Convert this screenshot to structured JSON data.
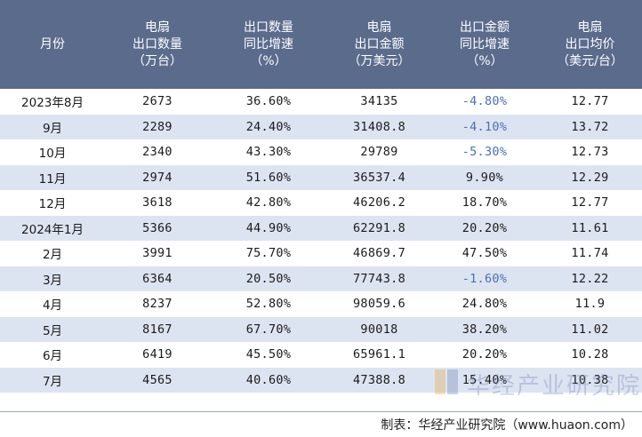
{
  "chart_data": {
    "type": "table",
    "columns": [
      "月份",
      "电扇\n出口数量\n（万台）",
      "出口数量\n同比增速\n（%）",
      "电扇\n出口金额\n（万美元）",
      "出口金额\n同比增速\n（%）",
      "电扇\n出口均价\n（美元/台）"
    ],
    "rows": [
      [
        "2023年8月",
        "2673",
        "36.60%",
        "34135",
        "-4.80%",
        "12.77"
      ],
      [
        "9月",
        "2289",
        "24.40%",
        "31408.8",
        "-4.10%",
        "13.72"
      ],
      [
        "10月",
        "2340",
        "43.30%",
        "29789",
        "-5.30%",
        "12.73"
      ],
      [
        "11月",
        "2974",
        "51.60%",
        "36537.4",
        "9.90%",
        "12.29"
      ],
      [
        "12月",
        "3618",
        "42.80%",
        "46206.2",
        "18.70%",
        "12.77"
      ],
      [
        "2024年1月",
        "5366",
        "44.90%",
        "62291.8",
        "20.20%",
        "11.61"
      ],
      [
        "2月",
        "3991",
        "75.70%",
        "46869.7",
        "47.50%",
        "11.74"
      ],
      [
        "3月",
        "6364",
        "20.50%",
        "77743.8",
        "-1.60%",
        "12.22"
      ],
      [
        "4月",
        "8237",
        "52.80%",
        "98059.6",
        "24.80%",
        "11.9"
      ],
      [
        "5月",
        "8167",
        "67.70%",
        "90018",
        "38.20%",
        "11.02"
      ],
      [
        "6月",
        "6419",
        "45.50%",
        "65961.1",
        "20.20%",
        "10.28"
      ],
      [
        "7月",
        "4565",
        "40.60%",
        "47388.8",
        "15.40%",
        "10.38"
      ]
    ]
  },
  "source": "制表：华经产业研究院（www.huaon.com）",
  "watermark": "华经产业研究院",
  "colors": {
    "header_bg": "#5b6b8c",
    "stripe": "#dde4f1",
    "negative": "#4a6fb8"
  }
}
